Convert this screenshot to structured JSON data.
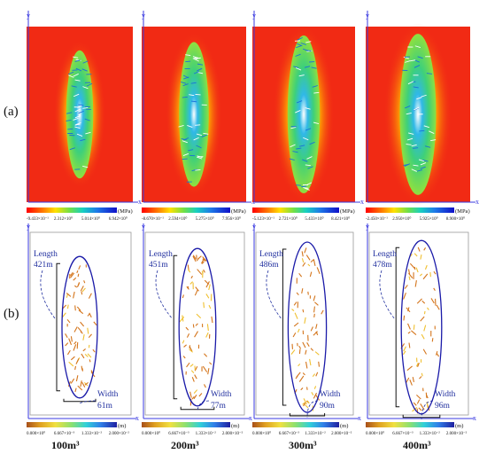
{
  "row_labels": {
    "a": "(a)",
    "b": "(b)"
  },
  "axis_labels": {
    "x": "x",
    "y": "y"
  },
  "panels": [
    {
      "volume_label": "100m³",
      "stress_unit": "(MPa)",
      "stress_ticks": [
        "-9.433×10⁻¹",
        "2.312×10⁰",
        "5.014×10⁰",
        "6.942×10⁰"
      ],
      "fracture_unit": "(m)",
      "fracture_ticks": [
        "0.000×10⁰",
        "6.667×10⁻³",
        "1.333×10⁻²",
        "2.000×10⁻²"
      ],
      "length_word": "Length",
      "length_value": "421m",
      "width_word": "Width",
      "width_value": "61m"
    },
    {
      "volume_label": "200m³",
      "stress_unit": "(MPa)",
      "stress_ticks": [
        "-8.670×10⁻¹",
        "2.594×10⁰",
        "5.275×10⁰",
        "7.956×10⁰"
      ],
      "fracture_unit": "(m)",
      "fracture_ticks": [
        "0.000×10⁰",
        "6.667×10⁻³",
        "1.333×10⁻²",
        "2.000×10⁻²"
      ],
      "length_word": "Length",
      "length_value": "451m",
      "width_word": "Width",
      "width_value": "77m"
    },
    {
      "volume_label": "300m³",
      "stress_unit": "(MPa)",
      "stress_ticks": [
        "-5.123×10⁻¹",
        "2.721×10⁰",
        "5.433×10⁰",
        "8.421×10⁰"
      ],
      "fracture_unit": "(m)",
      "fracture_ticks": [
        "0.000×10⁰",
        "6.667×10⁻³",
        "1.333×10⁻²",
        "2.000×10⁻²"
      ],
      "length_word": "Length",
      "length_value": "486m",
      "width_word": "Width",
      "width_value": "90m"
    },
    {
      "volume_label": "400m³",
      "stress_unit": "(MPa)",
      "stress_ticks": [
        "-2.450×10⁻¹",
        "2.950×10⁰",
        "5.925×10⁰",
        "8.900×10⁰"
      ],
      "fracture_unit": "(m)",
      "fracture_ticks": [
        "0.000×10⁰",
        "6.667×10⁻³",
        "1.333×10⁻²",
        "2.000×10⁻²"
      ],
      "length_word": "Length",
      "length_value": "478m",
      "width_word": "Width",
      "width_value": "96m"
    }
  ],
  "colors": {
    "background_stress": "#f12a14",
    "ellipse": "#1a1aa8",
    "annotation": "#1f2e9e",
    "fracture": "#d4751c",
    "axis": "#3a3ae0"
  }
}
